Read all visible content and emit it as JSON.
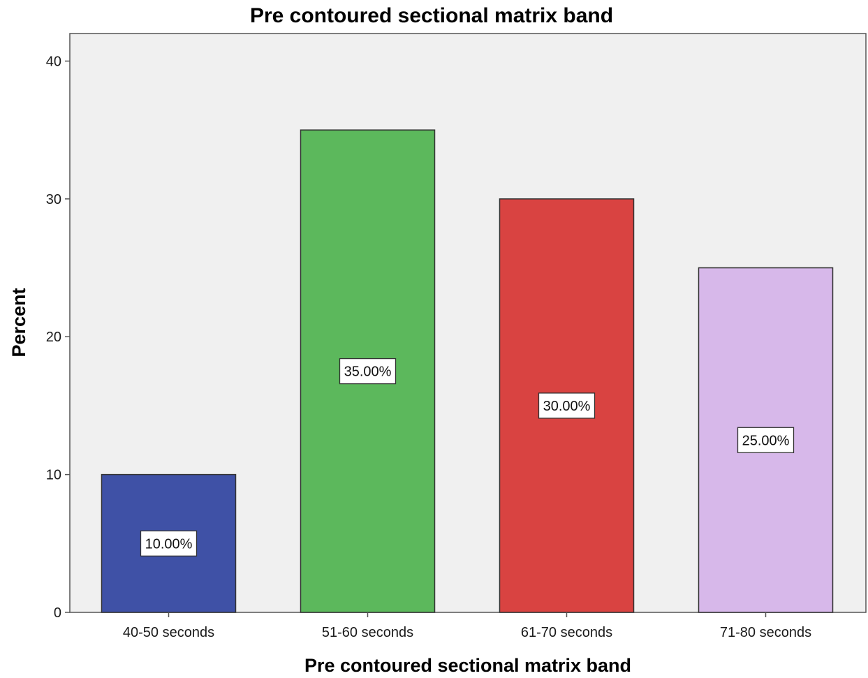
{
  "chart_data": {
    "type": "bar",
    "title": "Pre contoured sectional matrix band",
    "xlabel": "Pre contoured sectional matrix band",
    "ylabel": "Percent",
    "categories": [
      "40-50 seconds",
      "51-60 seconds",
      "61-70 seconds",
      "71-80 seconds"
    ],
    "values": [
      10,
      35,
      30,
      25
    ],
    "data_labels": [
      "10.00%",
      "35.00%",
      "30.00%",
      "25.00%"
    ],
    "colors": [
      "#3f51a6",
      "#5cb85c",
      "#d94341",
      "#d7b8ea"
    ],
    "yticks": [
      "0",
      "10",
      "20",
      "30",
      "40"
    ],
    "ylim": [
      0,
      42
    ],
    "grid": false,
    "plot_background": "#f0f0f0",
    "legend": "none"
  }
}
